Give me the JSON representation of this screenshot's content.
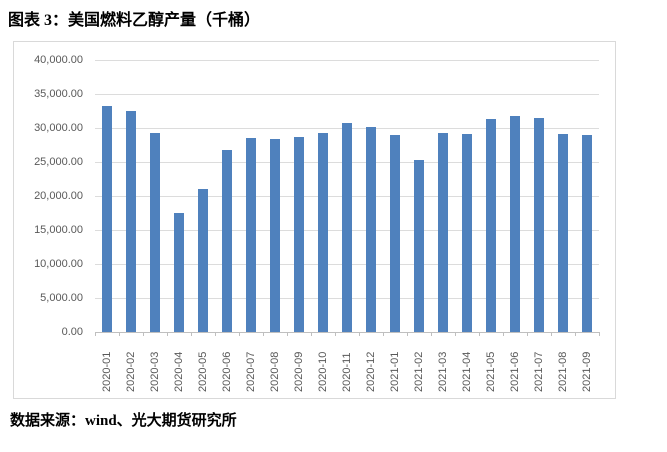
{
  "title": "图表 3：美国燃料乙醇产量（千桶）",
  "source": "数据来源：wind、光大期货研究所",
  "chart_data": {
    "type": "bar",
    "title": "美国燃料乙醇产量（千桶）",
    "categories": [
      "2020-01",
      "2020-02",
      "2020-03",
      "2020-04",
      "2020-05",
      "2020-06",
      "2020-07",
      "2020-08",
      "2020-09",
      "2020-10",
      "2020-11",
      "2020-12",
      "2021-01",
      "2021-02",
      "2021-03",
      "2021-04",
      "2021-05",
      "2021-06",
      "2021-07",
      "2021-08",
      "2021-09"
    ],
    "values": [
      33300,
      32500,
      29300,
      17500,
      21100,
      26700,
      28600,
      28400,
      28700,
      29300,
      30800,
      30100,
      28900,
      25300,
      29300,
      29100,
      31300,
      31800,
      31400,
      29100,
      28900
    ],
    "xlabel": "",
    "ylabel": "",
    "ylim": [
      0,
      40000
    ],
    "ytick_step": 5000,
    "ytick_labels": [
      "0.00",
      "5,000.00",
      "10,000.00",
      "15,000.00",
      "20,000.00",
      "25,000.00",
      "30,000.00",
      "35,000.00",
      "40,000.00"
    ],
    "grid": "horizontal",
    "legend": "none",
    "colors": {
      "bar": "#4f81bd",
      "axis_text": "#595959",
      "gridline": "#dcdcdc",
      "axis_line": "#bfbfbf",
      "frame_border": "#d9d9d9"
    }
  }
}
